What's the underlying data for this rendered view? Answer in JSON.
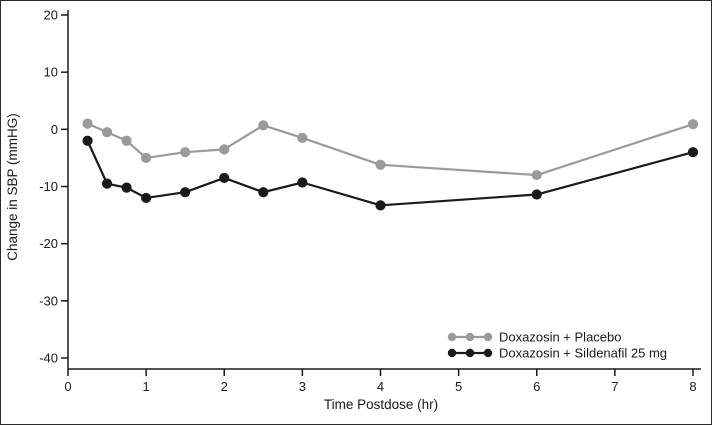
{
  "chart_data": {
    "type": "line",
    "title": "",
    "xlabel": "Time Postdose (hr)",
    "ylabel": "Change in SBP (mmHG)",
    "xlim": [
      0,
      8
    ],
    "ylim": [
      -40,
      20
    ],
    "xticks": [
      0,
      1,
      2,
      3,
      4,
      5,
      6,
      7,
      8
    ],
    "yticks": [
      -40,
      -30,
      -20,
      -10,
      0,
      10,
      20
    ],
    "grid": false,
    "legend_position": "bottom-right",
    "x": [
      0.25,
      0.5,
      0.75,
      1,
      1.5,
      2,
      2.5,
      3,
      4,
      6,
      8
    ],
    "series": [
      {
        "name": "Doxazosin + Placebo",
        "color": "#9a9a9a",
        "values": [
          1,
          -0.5,
          -2,
          -5,
          -4,
          -3.5,
          0.7,
          -1.5,
          -6.2,
          -8,
          0.9
        ]
      },
      {
        "name": "Doxazosin + Sildenafil 25 mg",
        "color": "#1a1a1a",
        "values": [
          -2,
          -9.5,
          -10.2,
          -12,
          -11,
          -8.5,
          -11,
          -9.3,
          -13.3,
          -11.4,
          -4
        ]
      }
    ]
  }
}
